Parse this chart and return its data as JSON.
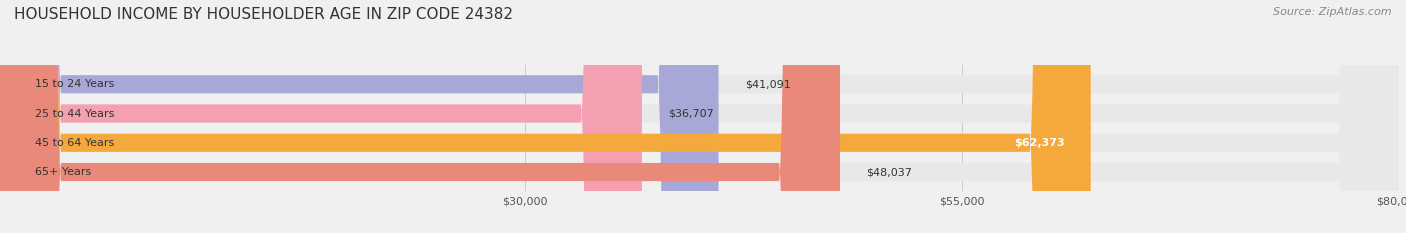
{
  "title": "HOUSEHOLD INCOME BY HOUSEHOLDER AGE IN ZIP CODE 24382",
  "source": "Source: ZipAtlas.com",
  "categories": [
    "15 to 24 Years",
    "25 to 44 Years",
    "45 to 64 Years",
    "65+ Years"
  ],
  "values": [
    41091,
    36707,
    62373,
    48037
  ],
  "bar_colors": [
    "#a8a8d8",
    "#f4a0b0",
    "#f5a83c",
    "#e8897a"
  ],
  "label_colors": [
    "#333333",
    "#333333",
    "#ffffff",
    "#333333"
  ],
  "xmin": 0,
  "xmax": 80000,
  "xticks": [
    30000,
    55000,
    80000
  ],
  "xtick_labels": [
    "$30,000",
    "$55,000",
    "$80,000"
  ],
  "value_labels": [
    "$41,091",
    "$36,707",
    "$62,373",
    "$48,037"
  ],
  "background_color": "#f0f0f0",
  "bar_background_color": "#e8e8e8",
  "title_fontsize": 11,
  "source_fontsize": 8,
  "bar_height": 0.62,
  "figsize": [
    14.06,
    2.33
  ]
}
